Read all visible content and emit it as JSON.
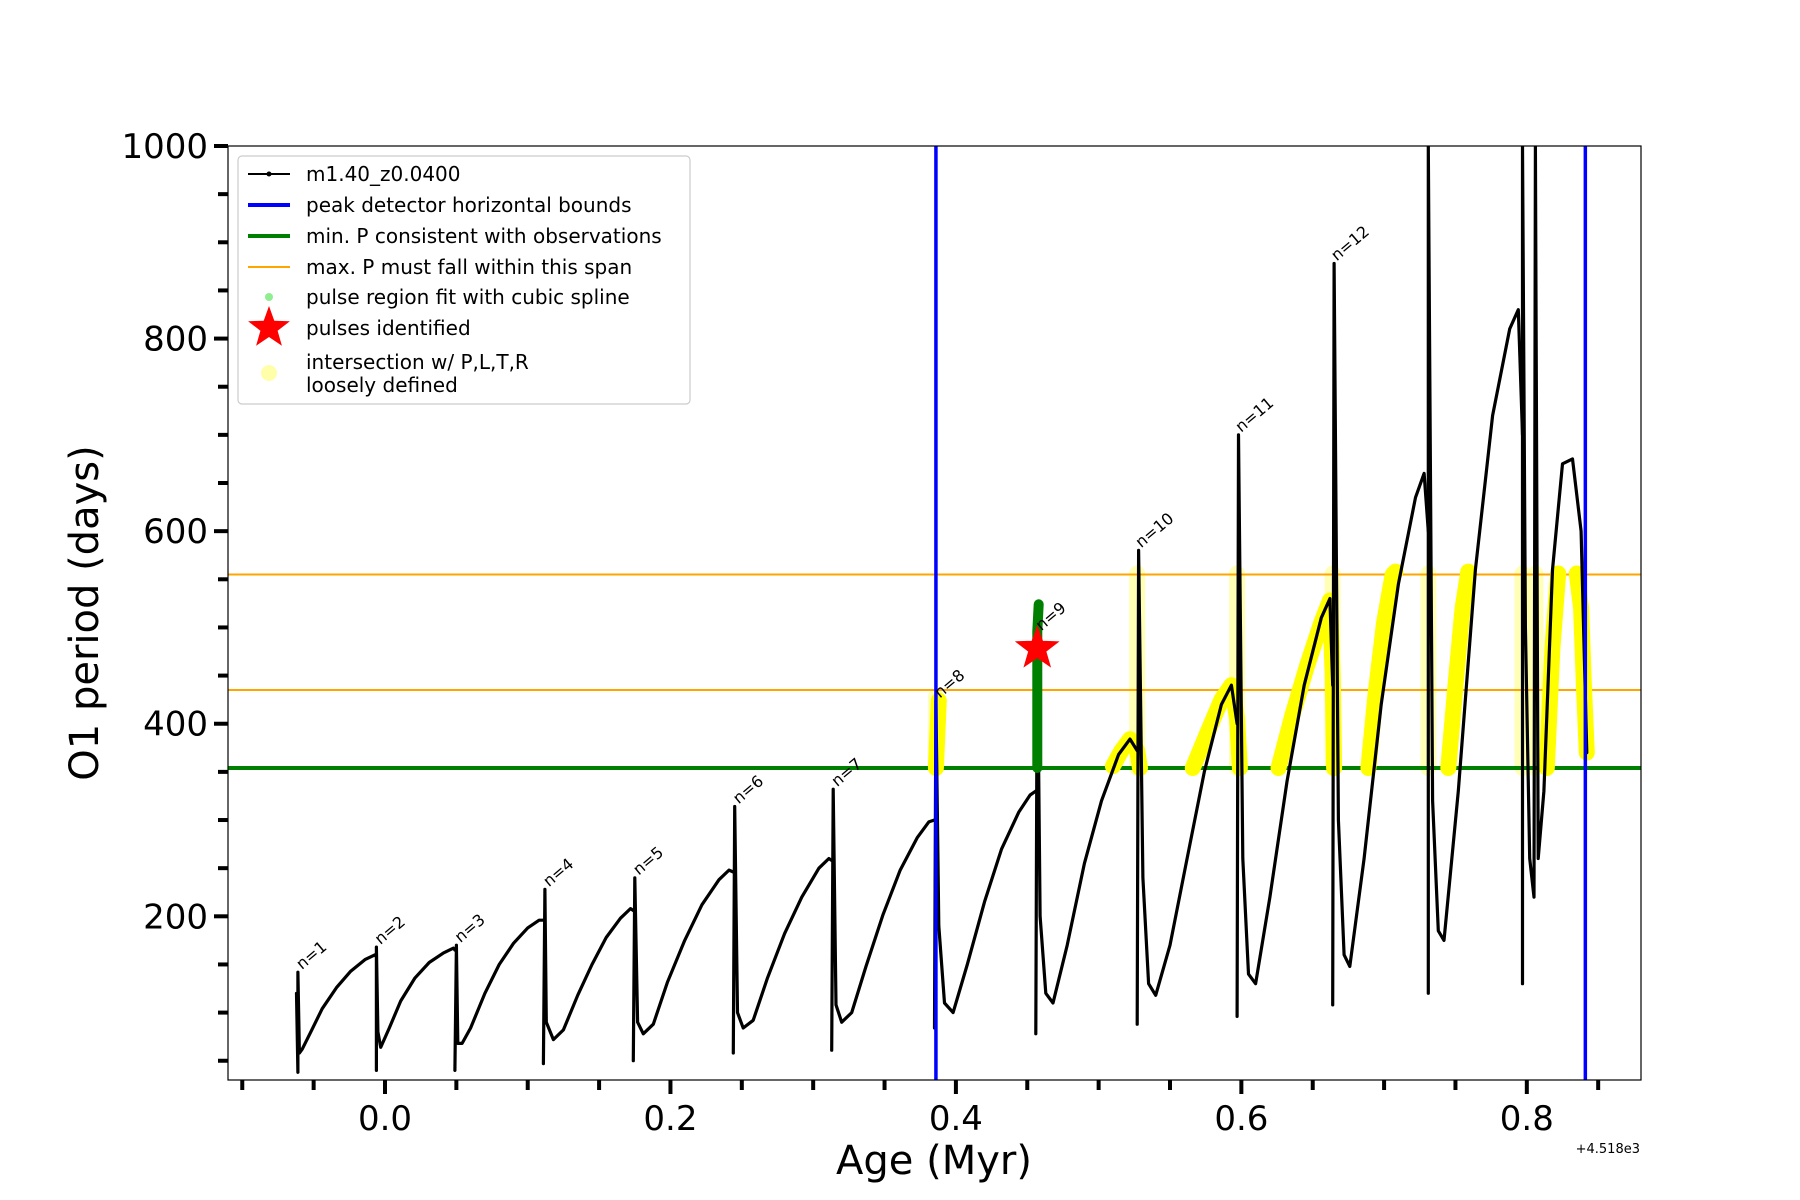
{
  "chart_data": {
    "type": "line",
    "xlabel": "Age (Myr)",
    "ylabel": "O1 period (days)",
    "x_offset_label": "+4.518e3",
    "xlim": [
      -0.11,
      0.88
    ],
    "ylim": [
      30,
      1000
    ],
    "x_ticks": [
      0.0,
      0.2,
      0.4,
      0.6,
      0.8
    ],
    "x_tick_labels": [
      "0.0",
      "0.2",
      "0.4",
      "0.6",
      "0.8"
    ],
    "y_ticks": [
      200,
      400,
      600,
      800,
      1000
    ],
    "y_tick_labels": [
      "200",
      "400",
      "600",
      "800",
      "1000"
    ],
    "y_minor_ticks": [
      50,
      100,
      150,
      250,
      300,
      350,
      450,
      500,
      550,
      650,
      700,
      750,
      850,
      900,
      950
    ],
    "x_minor_ticks": [
      -0.1,
      -0.05,
      0.05,
      0.1,
      0.15,
      0.25,
      0.3,
      0.35,
      0.45,
      0.5,
      0.55,
      0.65,
      0.7,
      0.75,
      0.85
    ],
    "legend": [
      {
        "label": "m1.40_z0.0400",
        "style": "line-marker",
        "color": "#000000"
      },
      {
        "label": "peak detector horizontal bounds",
        "style": "line",
        "color": "#0000ff"
      },
      {
        "label": "min. P consistent with observations",
        "style": "line",
        "color": "#008000"
      },
      {
        "label": "max. P must fall within this span",
        "style": "thin-line",
        "color": "#ffa500"
      },
      {
        "label": "pulse region fit with cubic spline",
        "style": "dot",
        "color": "#90ee90"
      },
      {
        "label": "pulses identified",
        "style": "star",
        "color": "#ff0000"
      },
      {
        "label": "intersection w/ P,L,T,R",
        "label2": "loosely defined",
        "style": "circle",
        "color": "#ffffaa"
      }
    ],
    "vertical_bounds": [
      0.386,
      0.841
    ],
    "min_period": 354,
    "max_period_span": [
      435,
      555
    ],
    "identified_pulse": {
      "x": 0.457,
      "y": 478
    },
    "pulse_labels": [
      {
        "text": "n=1",
        "x": -0.061,
        "y": 142
      },
      {
        "text": "n=2",
        "x": -0.006,
        "y": 168
      },
      {
        "text": "n=3",
        "x": 0.05,
        "y": 170
      },
      {
        "text": "n=4",
        "x": 0.112,
        "y": 228
      },
      {
        "text": "n=5",
        "x": 0.175,
        "y": 240
      },
      {
        "text": "n=6",
        "x": 0.245,
        "y": 314
      },
      {
        "text": "n=7",
        "x": 0.314,
        "y": 332
      },
      {
        "text": "n=8",
        "x": 0.386,
        "y": 424
      },
      {
        "text": "n=9",
        "x": 0.457,
        "y": 494
      },
      {
        "text": "n=10",
        "x": 0.527,
        "y": 580
      },
      {
        "text": "n=11",
        "x": 0.597,
        "y": 700
      },
      {
        "text": "n=12",
        "x": 0.664,
        "y": 878
      }
    ],
    "series": [
      {
        "name": "m1.40_z0.0400",
        "color": "#000000",
        "segments": [
          {
            "x": [
              -0.062,
              -0.061,
              -0.061,
              -0.06,
              -0.058,
              -0.052,
              -0.044,
              -0.034,
              -0.024,
              -0.014,
              -0.007,
              -0.006
            ],
            "y": [
              120,
              38,
              142,
              58,
              62,
              80,
              104,
              126,
              143,
              155,
              160,
              158
            ]
          },
          {
            "x": [
              -0.006,
              -0.006,
              -0.005,
              -0.003,
              0.003,
              0.011,
              0.021,
              0.031,
              0.041,
              0.048,
              0.049
            ],
            "y": [
              40,
              168,
              80,
              64,
              84,
              112,
              136,
              152,
              162,
              167,
              165
            ]
          },
          {
            "x": [
              0.049,
              0.05,
              0.051,
              0.054,
              0.06,
              0.07,
              0.08,
              0.09,
              0.1,
              0.108,
              0.111
            ],
            "y": [
              40,
              170,
              68,
              68,
              84,
              120,
              150,
              172,
              188,
              196,
              196
            ]
          },
          {
            "x": [
              0.111,
              0.112,
              0.113,
              0.118,
              0.125,
              0.135,
              0.145,
              0.155,
              0.165,
              0.172,
              0.174
            ],
            "y": [
              47,
              228,
              90,
              72,
              82,
              118,
              150,
              178,
              198,
              208,
              206
            ]
          },
          {
            "x": [
              0.174,
              0.175,
              0.177,
              0.181,
              0.188,
              0.198,
              0.21,
              0.222,
              0.234,
              0.241,
              0.244
            ],
            "y": [
              50,
              240,
              90,
              78,
              88,
              132,
              175,
              212,
              238,
              248,
              246
            ]
          },
          {
            "x": [
              0.244,
              0.245,
              0.247,
              0.251,
              0.258,
              0.268,
              0.28,
              0.292,
              0.304,
              0.311,
              0.313
            ],
            "y": [
              58,
              314,
              100,
              84,
              92,
              136,
              182,
              220,
              250,
              260,
              258
            ]
          },
          {
            "x": [
              0.313,
              0.314,
              0.316,
              0.32,
              0.327,
              0.337,
              0.349,
              0.361,
              0.373,
              0.381,
              0.385
            ],
            "y": [
              61,
              332,
              108,
              90,
              100,
              148,
              202,
              248,
              282,
              298,
              300
            ]
          },
          {
            "x": [
              0.385,
              0.386,
              0.388,
              0.392,
              0.398,
              0.408,
              0.42,
              0.432,
              0.444,
              0.452,
              0.456
            ],
            "y": [
              84,
              424,
              190,
              110,
              100,
              150,
              215,
              270,
              308,
              326,
              330
            ]
          },
          {
            "x": [
              0.456,
              0.457,
              0.459,
              0.463,
              0.468,
              0.478,
              0.49,
              0.502,
              0.514,
              0.522,
              0.527
            ],
            "y": [
              78,
              494,
              200,
              120,
              110,
              170,
              255,
              320,
              368,
              384,
              372
            ]
          },
          {
            "x": [
              0.527,
              0.528,
              0.531,
              0.535,
              0.54,
              0.55,
              0.562,
              0.574,
              0.586,
              0.593,
              0.597
            ],
            "y": [
              88,
              580,
              240,
              130,
              118,
              170,
              260,
              350,
              420,
              440,
              400
            ]
          },
          {
            "x": [
              0.597,
              0.598,
              0.601,
              0.605,
              0.61,
              0.62,
              0.632,
              0.644,
              0.656,
              0.662,
              0.664
            ],
            "y": [
              96,
              700,
              260,
              140,
              130,
              220,
              340,
              440,
              510,
              530,
              440
            ]
          },
          {
            "x": [
              0.664,
              0.665,
              0.668,
              0.672,
              0.676,
              0.686,
              0.698,
              0.71,
              0.722,
              0.728,
              0.731
            ],
            "y": [
              108,
              878,
              300,
              160,
              148,
              260,
              420,
              545,
              635,
              660,
              600
            ]
          },
          {
            "x": [
              0.731,
              0.731,
              0.734,
              0.738,
              0.742,
              0.752,
              0.764,
              0.776,
              0.788,
              0.794,
              0.797
            ],
            "y": [
              120,
              1000,
              320,
              185,
              175,
              330,
              560,
              720,
              810,
              830,
              700
            ]
          },
          {
            "x": [
              0.797,
              0.797,
              0.799,
              0.802,
              0.805,
              0.806,
              0.808,
              0.812,
              0.818,
              0.825,
              0.832,
              0.838,
              0.842
            ],
            "y": [
              130,
              1000,
              500,
              260,
              220,
              1000,
              260,
              330,
              560,
              670,
              675,
              600,
              370
            ]
          }
        ]
      },
      {
        "name": "pulses identified (spline fit)",
        "color": "#008000",
        "segments": [
          {
            "x": [
              0.457,
              0.457,
              0.458
            ],
            "y": [
              354,
              496,
              524
            ]
          }
        ]
      },
      {
        "name": "intersection w/ P,L,T,R",
        "color": "#ffff00",
        "segments": [
          {
            "x": [
              0.386,
              0.387,
              0.388
            ],
            "y": [
              354,
              390,
              424
            ]
          },
          {
            "x": [
              0.51,
              0.516,
              0.522,
              0.527,
              0.529
            ],
            "y": [
              356,
              372,
              384,
              372,
              354
            ]
          },
          {
            "x": [
              0.566,
              0.576,
              0.586,
              0.593,
              0.597,
              0.599
            ],
            "y": [
              354,
              390,
              425,
              440,
              405,
              354
            ]
          },
          {
            "x": [
              0.626,
              0.636,
              0.646,
              0.656,
              0.662,
              0.664,
              0.665
            ],
            "y": [
              354,
              410,
              460,
              505,
              528,
              450,
              354
            ]
          },
          {
            "x": [
              0.689,
              0.694,
              0.7,
              0.706,
              0.708
            ],
            "y": [
              354,
              430,
              505,
              555,
              558
            ]
          },
          {
            "x": [
              0.745,
              0.75,
              0.755,
              0.759
            ],
            "y": [
              354,
              440,
              520,
              558
            ]
          },
          {
            "x": [
              0.814,
              0.818,
              0.822
            ],
            "y": [
              354,
              480,
              556
            ]
          },
          {
            "x": [
              0.835,
              0.838,
              0.84,
              0.842
            ],
            "y": [
              556,
              520,
              440,
              370
            ]
          }
        ]
      }
    ],
    "loose_intersections": [
      {
        "x": 0.386,
        "y0": 354,
        "y1": 428
      },
      {
        "x": 0.527,
        "y0": 354,
        "y1": 556
      },
      {
        "x": 0.597,
        "y0": 354,
        "y1": 556
      },
      {
        "x": 0.664,
        "y0": 354,
        "y1": 556
      },
      {
        "x": 0.731,
        "y0": 354,
        "y1": 556
      },
      {
        "x": 0.797,
        "y0": 354,
        "y1": 556
      },
      {
        "x": 0.806,
        "y0": 354,
        "y1": 556
      }
    ]
  }
}
